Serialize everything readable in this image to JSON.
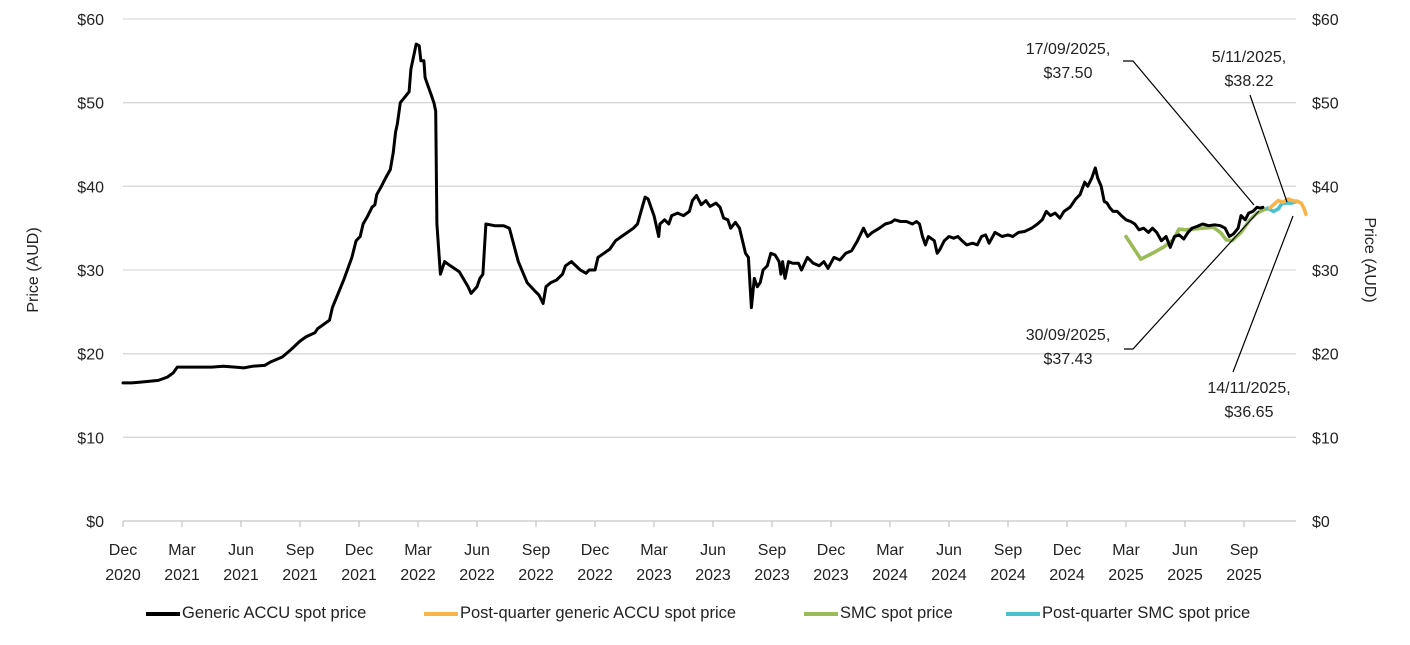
{
  "chart_data": {
    "type": "line",
    "title": "",
    "xlabel": "",
    "ylabel": "Price (AUD)",
    "ylabel_right": "Price (AUD)",
    "ylim": [
      0,
      60
    ],
    "y_ticks": [
      "$0",
      "$10",
      "$20",
      "$30",
      "$40",
      "$50",
      "$60"
    ],
    "y_tick_values": [
      0,
      10,
      20,
      30,
      40,
      50,
      60
    ],
    "grid": true,
    "legend_position": "bottom",
    "x_ticks": [
      [
        "Dec",
        "2020"
      ],
      [
        "Mar",
        "2021"
      ],
      [
        "Jun",
        "2021"
      ],
      [
        "Sep",
        "2021"
      ],
      [
        "Dec",
        "2021"
      ],
      [
        "Mar",
        "2022"
      ],
      [
        "Jun",
        "2022"
      ],
      [
        "Sep",
        "2022"
      ],
      [
        "Dec",
        "2022"
      ],
      [
        "Mar",
        "2023"
      ],
      [
        "Jun",
        "2023"
      ],
      [
        "Sep",
        "2023"
      ],
      [
        "Dec",
        "2023"
      ],
      [
        "Mar",
        "2024"
      ],
      [
        "Jun",
        "2024"
      ],
      [
        "Sep",
        "2024"
      ],
      [
        "Dec",
        "2024"
      ],
      [
        "Mar",
        "2025"
      ],
      [
        "Jun",
        "2025"
      ],
      [
        "Sep",
        "2025"
      ]
    ],
    "x_unit": "quarters since Dec 2020",
    "series": [
      {
        "name": "Generic ACCU spot price",
        "color": "#000000",
        "points": [
          [
            0.0,
            16.5
          ],
          [
            0.15,
            16.5
          ],
          [
            0.3,
            16.6
          ],
          [
            0.6,
            16.8
          ],
          [
            0.75,
            17.2
          ],
          [
            0.85,
            17.7
          ],
          [
            0.92,
            18.4
          ],
          [
            1.2,
            18.4
          ],
          [
            1.5,
            18.4
          ],
          [
            1.7,
            18.5
          ],
          [
            1.9,
            18.4
          ],
          [
            2.05,
            18.3
          ],
          [
            2.2,
            18.5
          ],
          [
            2.4,
            18.6
          ],
          [
            2.5,
            19.0
          ],
          [
            2.7,
            19.6
          ],
          [
            2.85,
            20.5
          ],
          [
            3.0,
            21.5
          ],
          [
            3.1,
            22.0
          ],
          [
            3.25,
            22.5
          ],
          [
            3.3,
            23.0
          ],
          [
            3.5,
            24.0
          ],
          [
            3.55,
            25.5
          ],
          [
            3.75,
            29.0
          ],
          [
            3.88,
            31.5
          ],
          [
            3.95,
            33.5
          ],
          [
            4.02,
            34.0
          ],
          [
            4.07,
            35.5
          ],
          [
            4.15,
            36.5
          ],
          [
            4.22,
            37.5
          ],
          [
            4.27,
            37.8
          ],
          [
            4.3,
            39.0
          ],
          [
            4.38,
            40.0
          ],
          [
            4.45,
            41.0
          ],
          [
            4.53,
            42.0
          ],
          [
            4.58,
            44.0
          ],
          [
            4.62,
            46.5
          ],
          [
            4.65,
            47.5
          ],
          [
            4.7,
            50.0
          ],
          [
            4.85,
            51.3
          ],
          [
            4.88,
            54.0
          ],
          [
            4.97,
            57.0
          ],
          [
            5.02,
            56.8
          ],
          [
            5.05,
            55.0
          ],
          [
            5.1,
            55.0
          ],
          [
            5.12,
            53.0
          ],
          [
            5.17,
            52.0
          ],
          [
            5.22,
            51.0
          ],
          [
            5.27,
            50.0
          ],
          [
            5.3,
            49.0
          ],
          [
            5.32,
            35.5
          ],
          [
            5.38,
            29.5
          ],
          [
            5.45,
            31.0
          ],
          [
            5.55,
            30.5
          ],
          [
            5.7,
            29.8
          ],
          [
            5.85,
            28.0
          ],
          [
            5.9,
            27.2
          ],
          [
            6.0,
            28.0
          ],
          [
            6.05,
            29.0
          ],
          [
            6.1,
            29.5
          ],
          [
            6.15,
            35.5
          ],
          [
            6.3,
            35.3
          ],
          [
            6.45,
            35.3
          ],
          [
            6.55,
            35.0
          ],
          [
            6.7,
            31.0
          ],
          [
            6.85,
            28.5
          ],
          [
            6.98,
            27.5
          ],
          [
            7.05,
            27.0
          ],
          [
            7.12,
            26.0
          ],
          [
            7.17,
            28.0
          ],
          [
            7.25,
            28.5
          ],
          [
            7.35,
            28.8
          ],
          [
            7.45,
            29.5
          ],
          [
            7.5,
            30.5
          ],
          [
            7.6,
            31.0
          ],
          [
            7.75,
            30.0
          ],
          [
            7.85,
            29.6
          ],
          [
            7.9,
            30.0
          ],
          [
            8.0,
            30.0
          ],
          [
            8.05,
            31.5
          ],
          [
            8.15,
            32.0
          ],
          [
            8.25,
            32.5
          ],
          [
            8.35,
            33.5
          ],
          [
            8.45,
            34.0
          ],
          [
            8.55,
            34.5
          ],
          [
            8.65,
            35.0
          ],
          [
            8.72,
            35.5
          ],
          [
            8.8,
            37.5
          ],
          [
            8.85,
            38.7
          ],
          [
            8.9,
            38.5
          ],
          [
            8.95,
            37.5
          ],
          [
            9.0,
            36.5
          ],
          [
            9.08,
            34.0
          ],
          [
            9.1,
            35.5
          ],
          [
            9.18,
            36.0
          ],
          [
            9.25,
            35.5
          ],
          [
            9.3,
            36.5
          ],
          [
            9.4,
            36.8
          ],
          [
            9.5,
            36.5
          ],
          [
            9.6,
            37.0
          ],
          [
            9.65,
            38.3
          ],
          [
            9.72,
            38.9
          ],
          [
            9.8,
            37.8
          ],
          [
            9.88,
            38.3
          ],
          [
            9.95,
            37.6
          ],
          [
            10.05,
            38.0
          ],
          [
            10.12,
            37.5
          ],
          [
            10.18,
            36.2
          ],
          [
            10.25,
            36.0
          ],
          [
            10.3,
            35.0
          ],
          [
            10.38,
            35.7
          ],
          [
            10.45,
            35.0
          ],
          [
            10.5,
            33.5
          ],
          [
            10.55,
            32.0
          ],
          [
            10.6,
            31.5
          ],
          [
            10.65,
            25.5
          ],
          [
            10.7,
            29.0
          ],
          [
            10.75,
            28.0
          ],
          [
            10.8,
            28.5
          ],
          [
            10.85,
            30.0
          ],
          [
            10.92,
            30.5
          ],
          [
            10.98,
            32.0
          ],
          [
            11.05,
            31.8
          ],
          [
            11.12,
            31.0
          ],
          [
            11.15,
            29.5
          ],
          [
            11.18,
            31.0
          ],
          [
            11.22,
            29.0
          ],
          [
            11.28,
            31.0
          ],
          [
            11.35,
            30.8
          ],
          [
            11.45,
            30.8
          ],
          [
            11.5,
            30.0
          ],
          [
            11.6,
            31.5
          ],
          [
            11.7,
            30.8
          ],
          [
            11.8,
            30.5
          ],
          [
            11.88,
            31.0
          ],
          [
            11.95,
            30.2
          ],
          [
            12.05,
            31.5
          ],
          [
            12.15,
            31.2
          ],
          [
            12.25,
            32.0
          ],
          [
            12.35,
            32.3
          ],
          [
            12.45,
            33.5
          ],
          [
            12.55,
            35.0
          ],
          [
            12.62,
            34.0
          ],
          [
            12.7,
            34.5
          ],
          [
            12.82,
            35.0
          ],
          [
            12.92,
            35.5
          ],
          [
            13.02,
            35.7
          ],
          [
            13.08,
            36.0
          ],
          [
            13.18,
            35.8
          ],
          [
            13.28,
            35.8
          ],
          [
            13.38,
            35.5
          ],
          [
            13.45,
            35.8
          ],
          [
            13.5,
            35.5
          ],
          [
            13.55,
            34.0
          ],
          [
            13.6,
            33.0
          ],
          [
            13.65,
            34.0
          ],
          [
            13.75,
            33.5
          ],
          [
            13.8,
            32.0
          ],
          [
            13.85,
            32.5
          ],
          [
            13.92,
            33.5
          ],
          [
            14.0,
            34.0
          ],
          [
            14.08,
            33.8
          ],
          [
            14.15,
            34.0
          ],
          [
            14.22,
            33.5
          ],
          [
            14.3,
            33.0
          ],
          [
            14.4,
            33.2
          ],
          [
            14.48,
            33.0
          ],
          [
            14.55,
            34.0
          ],
          [
            14.62,
            34.2
          ],
          [
            14.68,
            33.2
          ],
          [
            14.78,
            34.5
          ],
          [
            14.9,
            34.0
          ],
          [
            15.0,
            34.2
          ],
          [
            15.08,
            34.0
          ],
          [
            15.18,
            34.5
          ],
          [
            15.28,
            34.6
          ],
          [
            15.4,
            35.0
          ],
          [
            15.5,
            35.5
          ],
          [
            15.58,
            36.0
          ],
          [
            15.65,
            37.0
          ],
          [
            15.72,
            36.5
          ],
          [
            15.8,
            36.8
          ],
          [
            15.88,
            36.2
          ],
          [
            15.95,
            37.0
          ],
          [
            16.05,
            37.5
          ],
          [
            16.15,
            38.5
          ],
          [
            16.22,
            39.0
          ],
          [
            16.3,
            40.5
          ],
          [
            16.35,
            40.0
          ],
          [
            16.42,
            41.0
          ],
          [
            16.48,
            42.2
          ],
          [
            16.52,
            41.0
          ],
          [
            16.58,
            40.0
          ],
          [
            16.63,
            38.2
          ],
          [
            16.68,
            38.0
          ],
          [
            16.72,
            37.5
          ],
          [
            16.78,
            37.0
          ],
          [
            16.85,
            37.0
          ],
          [
            16.92,
            36.5
          ],
          [
            17.0,
            36.0
          ],
          [
            17.08,
            35.8
          ],
          [
            17.15,
            35.5
          ],
          [
            17.22,
            34.8
          ],
          [
            17.3,
            35.0
          ],
          [
            17.38,
            34.5
          ],
          [
            17.45,
            35.0
          ],
          [
            17.52,
            34.5
          ],
          [
            17.6,
            33.5
          ],
          [
            17.68,
            34.0
          ],
          [
            17.75,
            32.7
          ],
          [
            17.82,
            34.0
          ],
          [
            17.9,
            34.2
          ],
          [
            17.98,
            33.7
          ],
          [
            18.05,
            34.5
          ],
          [
            18.12,
            35.0
          ],
          [
            18.2,
            35.2
          ],
          [
            18.3,
            35.5
          ],
          [
            18.4,
            35.3
          ],
          [
            18.5,
            35.4
          ],
          [
            18.6,
            35.3
          ],
          [
            18.68,
            35.0
          ],
          [
            18.75,
            34.0
          ],
          [
            18.82,
            34.3
          ],
          [
            18.9,
            35.0
          ],
          [
            18.95,
            36.5
          ],
          [
            19.02,
            36.0
          ],
          [
            19.08,
            36.8
          ],
          [
            19.15,
            37.0
          ],
          [
            19.22,
            37.5
          ],
          [
            19.28,
            37.4
          ],
          [
            19.32,
            37.5
          ]
        ]
      },
      {
        "name": "Post-quarter generic ACCU spot price",
        "color": "#F9B54A",
        "points": [
          [
            19.44,
            37.43
          ],
          [
            19.5,
            37.8
          ],
          [
            19.58,
            38.3
          ],
          [
            19.66,
            38.1
          ],
          [
            19.75,
            38.5
          ],
          [
            19.82,
            38.3
          ],
          [
            19.9,
            38.22
          ],
          [
            19.97,
            38.0
          ],
          [
            20.02,
            37.3
          ],
          [
            20.05,
            36.65
          ]
        ]
      },
      {
        "name": "SMC spot price",
        "color": "#9BBB59",
        "points": [
          [
            17.0,
            34.0
          ],
          [
            17.25,
            31.3
          ],
          [
            17.45,
            32.0
          ],
          [
            17.65,
            32.8
          ],
          [
            17.8,
            33.6
          ],
          [
            17.9,
            34.9
          ],
          [
            18.0,
            34.8
          ],
          [
            18.3,
            35.0
          ],
          [
            18.48,
            35.1
          ],
          [
            18.6,
            34.5
          ],
          [
            18.7,
            33.6
          ],
          [
            18.8,
            33.5
          ],
          [
            18.95,
            34.5
          ],
          [
            19.1,
            36.0
          ],
          [
            19.22,
            36.8
          ],
          [
            19.33,
            37.2
          ],
          [
            19.44,
            37.4
          ]
        ]
      },
      {
        "name": "Post-quarter SMC spot price",
        "color": "#4BC0CE",
        "points": [
          [
            19.4,
            37.4
          ],
          [
            19.5,
            37.0
          ],
          [
            19.58,
            37.3
          ],
          [
            19.65,
            38.0
          ],
          [
            19.8,
            38.0
          ],
          [
            19.9,
            38.2
          ]
        ]
      }
    ],
    "annotations": [
      {
        "text": [
          "17/09/2025,",
          "$37.50"
        ],
        "date": "17/09/2025",
        "value": 37.5
      },
      {
        "text": [
          "30/09/2025,",
          "$37.43"
        ],
        "date": "30/09/2025",
        "value": 37.43
      },
      {
        "text": [
          "5/11/2025,",
          "$38.22"
        ],
        "date": "5/11/2025",
        "value": 38.22
      },
      {
        "text": [
          "14/11/2025,",
          "$36.65"
        ],
        "date": "14/11/2025",
        "value": 36.65
      }
    ]
  },
  "legend": {
    "items": [
      {
        "label": "Generic ACCU spot price",
        "color": "#000000"
      },
      {
        "label": "Post-quarter generic ACCU spot price",
        "color": "#F9B54A"
      },
      {
        "label": "SMC spot price",
        "color": "#9BBB59"
      },
      {
        "label": "Post-quarter SMC spot price",
        "color": "#4BC0CE"
      }
    ]
  }
}
